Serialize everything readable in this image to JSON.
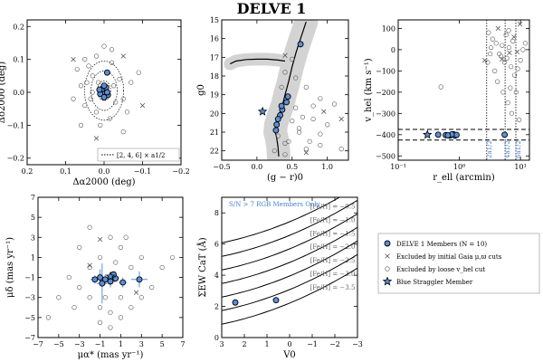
{
  "title": "DELVE 1",
  "chart_data": [
    {
      "id": "spatial",
      "type": "scatter",
      "xlabel": "Δα2000 (deg)",
      "ylabel": "Δδ2000 (deg)",
      "xlim": [
        0.2,
        -0.2
      ],
      "ylim": [
        -0.22,
        0.22
      ],
      "xticks": [
        0.2,
        0.1,
        0.0,
        -0.1,
        -0.2
      ],
      "yticks": [
        -0.2,
        -0.1,
        0.0,
        0.1,
        0.2
      ],
      "xticklabels": [
        "0.2",
        "0.1",
        "0.0",
        "−0.1",
        "−0.2"
      ],
      "yticklabels": [
        "−0.2",
        "−0.1",
        "0.0",
        "0.1",
        "0.2"
      ],
      "legend": "[2, 4, 6] × a1/2",
      "ellipses": [
        {
          "a": 0.017,
          "b": 0.03
        },
        {
          "a": 0.034,
          "b": 0.06
        },
        {
          "a": 0.051,
          "b": 0.09
        }
      ],
      "members": [
        [
          0.0,
          0.0
        ],
        [
          0.005,
          0.01
        ],
        [
          -0.005,
          0.015
        ],
        [
          0.01,
          -0.005
        ],
        [
          -0.01,
          -0.008
        ],
        [
          0.0,
          0.02
        ],
        [
          0.012,
          0.008
        ],
        [
          -0.008,
          0.0
        ],
        [
          0.0,
          -0.015
        ],
        [
          -0.008,
          0.06
        ]
      ],
      "loose": [
        [
          0.03,
          0.05
        ],
        [
          0.04,
          0.08
        ],
        [
          -0.02,
          0.09
        ],
        [
          0.05,
          -0.04
        ],
        [
          -0.05,
          -0.02
        ],
        [
          0.02,
          -0.06
        ],
        [
          0.06,
          0.02
        ],
        [
          -0.04,
          0.04
        ],
        [
          0.07,
          0.07
        ],
        [
          -0.06,
          -0.06
        ],
        [
          0.03,
          0.0
        ],
        [
          -0.03,
          -0.03
        ],
        [
          0.045,
          0.03
        ],
        [
          -0.015,
          -0.08
        ],
        [
          0.02,
          0.11
        ],
        [
          -0.07,
          0.03
        ],
        [
          0.01,
          -0.1
        ],
        [
          -0.02,
          0.13
        ],
        [
          0.08,
          -0.02
        ],
        [
          -0.09,
          0.06
        ],
        [
          0.06,
          -0.1
        ],
        [
          -0.05,
          -0.12
        ],
        [
          0.015,
          0.03
        ],
        [
          -0.025,
          0.02
        ],
        [
          0.035,
          -0.02
        ],
        [
          0.05,
          0.1
        ],
        [
          0.0,
          0.14
        ]
      ],
      "excluded_gaia": [
        [
          -0.1,
          -0.04
        ],
        [
          0.08,
          0.1
        ],
        [
          0.02,
          -0.14
        ],
        [
          -0.05,
          0.11
        ]
      ]
    },
    {
      "id": "cmd",
      "type": "scatter",
      "xlabel": "(g − r)0",
      "ylabel": "g0",
      "xlim": [
        -0.5,
        1.3
      ],
      "ylim": [
        22.5,
        15.0
      ],
      "xticks": [
        -0.5,
        0.0,
        0.5,
        1.0
      ],
      "yticks": [
        15,
        16,
        17,
        18,
        19,
        20,
        21,
        22
      ],
      "xticklabels": [
        "−0.5",
        "0.0",
        "0.5",
        "1.0"
      ],
      "yticklabels": [
        "15",
        "16",
        "17",
        "18",
        "19",
        "20",
        "21",
        "22"
      ],
      "isochrone_rgb": [
        [
          0.31,
          22.3
        ],
        [
          0.3,
          21.8
        ],
        [
          0.28,
          21.3
        ],
        [
          0.26,
          21.0
        ],
        [
          0.27,
          20.6
        ],
        [
          0.31,
          20.1
        ],
        [
          0.36,
          19.6
        ],
        [
          0.4,
          19.0
        ],
        [
          0.45,
          18.3
        ],
        [
          0.5,
          17.5
        ],
        [
          0.56,
          16.7
        ],
        [
          0.62,
          16.0
        ],
        [
          0.7,
          15.1
        ]
      ],
      "isochrone_hb": [
        [
          -0.38,
          17.35
        ],
        [
          -0.3,
          17.2
        ],
        [
          -0.15,
          17.12
        ],
        [
          0.0,
          17.1
        ],
        [
          0.15,
          17.1
        ],
        [
          0.3,
          17.15
        ],
        [
          0.4,
          17.2
        ]
      ],
      "members": [
        [
          0.62,
          16.3
        ],
        [
          0.44,
          19.1
        ],
        [
          0.42,
          19.4
        ],
        [
          0.36,
          19.8
        ],
        [
          0.33,
          20.1
        ],
        [
          0.3,
          20.3
        ],
        [
          0.28,
          20.6
        ],
        [
          0.27,
          20.9
        ],
        [
          0.35,
          19.6
        ]
      ],
      "bss": [
        0.08,
        19.9
      ],
      "loose": [
        [
          0.5,
          17.1
        ],
        [
          0.55,
          18.1
        ],
        [
          0.4,
          17.8
        ],
        [
          0.7,
          18.6
        ],
        [
          0.9,
          19.2
        ],
        [
          0.5,
          20.4
        ],
        [
          0.6,
          21.0
        ],
        [
          0.4,
          21.6
        ],
        [
          0.7,
          21.9
        ],
        [
          0.8,
          20.3
        ],
        [
          1.0,
          20.6
        ],
        [
          0.3,
          21.2
        ],
        [
          0.45,
          21.5
        ],
        [
          0.9,
          21.1
        ],
        [
          1.1,
          19.5
        ],
        [
          0.35,
          18.6
        ],
        [
          0.6,
          20.8
        ],
        [
          0.75,
          21.5
        ],
        [
          0.55,
          19.7
        ],
        [
          1.2,
          21.9
        ],
        [
          0.25,
          22.0
        ],
        [
          0.8,
          19.6
        ],
        [
          0.65,
          20.2
        ],
        [
          0.9,
          21.7
        ],
        [
          0.4,
          22.2
        ]
      ],
      "excluded_gaia": [
        [
          0.4,
          16.9
        ],
        [
          0.95,
          19.9
        ],
        [
          1.2,
          20.3
        ],
        [
          0.7,
          22.1
        ]
      ]
    },
    {
      "id": "velocity",
      "type": "scatter",
      "xlabel": "r_ell (arcmin)",
      "ylabel": "v_hel (km s⁻¹)",
      "xscale": "log",
      "xlim": [
        0.1,
        14
      ],
      "ylim": [
        -520,
        140
      ],
      "yticks": [
        -500,
        -400,
        -300,
        -200,
        -100,
        0,
        100
      ],
      "yticklabels": [
        "−500",
        "−400",
        "−300",
        "−200",
        "−100",
        "0",
        "100"
      ],
      "xticks": [
        0.1,
        1,
        10
      ],
      "xticklabels": [
        "10⁻¹",
        "10⁰",
        "10¹"
      ],
      "vlines": [
        {
          "x": 2.8,
          "label": "2a1/2"
        },
        {
          "x": 5.6,
          "label": "4a1/2"
        },
        {
          "x": 8.4,
          "label": "6a1/2"
        }
      ],
      "hlines": [
        -375,
        -425
      ],
      "members": [
        [
          0.45,
          -400
        ],
        [
          0.6,
          -402
        ],
        [
          0.7,
          -404
        ],
        [
          0.8,
          -398
        ],
        [
          0.85,
          -405
        ],
        [
          0.9,
          -401
        ],
        [
          0.75,
          -399
        ],
        [
          0.65,
          -403
        ],
        [
          5.5,
          -400
        ]
      ],
      "bss": [
        0.3,
        -400
      ],
      "loose": [
        [
          0.5,
          -175
        ],
        [
          3.0,
          80
        ],
        [
          3.5,
          50
        ],
        [
          4.0,
          30
        ],
        [
          4.5,
          -20
        ],
        [
          5.0,
          20
        ],
        [
          5.5,
          -60
        ],
        [
          6.0,
          -40
        ],
        [
          6.5,
          10
        ],
        [
          7.0,
          -80
        ],
        [
          7.5,
          40
        ],
        [
          8.0,
          -120
        ],
        [
          3.2,
          -20
        ],
        [
          3.8,
          -100
        ],
        [
          4.2,
          -150
        ],
        [
          5.2,
          -200
        ],
        [
          6.2,
          -250
        ],
        [
          6.8,
          -180
        ],
        [
          7.2,
          -300
        ],
        [
          9.0,
          -90
        ],
        [
          10.0,
          -50
        ],
        [
          3.3,
          10
        ],
        [
          4.8,
          -30
        ],
        [
          2.9,
          -60
        ],
        [
          11,
          0
        ],
        [
          8.5,
          -200
        ],
        [
          9.5,
          -330
        ],
        [
          12,
          30
        ],
        [
          5.8,
          70
        ],
        [
          6.4,
          90
        ]
      ],
      "excluded_gaia": [
        [
          2.6,
          -50
        ],
        [
          4.3,
          100
        ],
        [
          5.0,
          -45
        ],
        [
          6.6,
          -15
        ],
        [
          7.8,
          60
        ],
        [
          8.8,
          -10
        ],
        [
          9.8,
          120
        ]
      ]
    },
    {
      "id": "proper-motion",
      "type": "scatter",
      "xlabel": "μα* (mas yr⁻¹)",
      "ylabel": "μδ (mas yr⁻¹)",
      "xlim": [
        -7,
        7
      ],
      "ylim": [
        -7,
        7
      ],
      "xticks": [
        -7,
        -5,
        -3,
        -1,
        1,
        3,
        5,
        7
      ],
      "yticks": [
        -7,
        -5,
        -3,
        -1,
        1,
        3,
        5,
        7
      ],
      "xticklabels": [
        "−7",
        "−5",
        "−3",
        "−1",
        "1",
        "3",
        "5",
        "7"
      ],
      "yticklabels": [
        "−7",
        "−5",
        "−3",
        "−1",
        "1",
        "3",
        "5",
        "7"
      ],
      "members": [
        [
          -1.0,
          -1.0
        ],
        [
          -0.5,
          -1.2
        ],
        [
          0.0,
          -1.4
        ],
        [
          0.5,
          -1.1
        ],
        [
          -0.8,
          -1.6
        ],
        [
          1.2,
          -1.5
        ],
        [
          2.8,
          -1.2
        ],
        [
          -1.5,
          -1.2
        ],
        [
          0.3,
          -0.7
        ]
      ],
      "member_errors": [
        [
          -1.0,
          -1.0,
          0.8,
          0.8
        ],
        [
          -0.5,
          -1.2,
          0.5,
          0.5
        ],
        [
          0.0,
          -1.4,
          0.5,
          0.6
        ],
        [
          0.5,
          -1.1,
          0.3,
          0.3
        ],
        [
          -0.8,
          -1.6,
          0.5,
          2.0
        ],
        [
          1.2,
          -1.5,
          0.4,
          0.5
        ],
        [
          2.8,
          -1.2,
          0.8,
          0.8
        ],
        [
          -1.5,
          -1.2,
          0.4,
          0.4
        ]
      ],
      "bss": [
        0.0,
        -0.9
      ],
      "loose": [
        [
          -3,
          2
        ],
        [
          -2,
          4
        ],
        [
          0,
          3
        ],
        [
          1,
          2
        ],
        [
          3,
          1
        ],
        [
          -4,
          -1
        ],
        [
          -5,
          -3
        ],
        [
          -6,
          -5
        ],
        [
          2,
          -4
        ],
        [
          1,
          -5
        ],
        [
          -1,
          -4
        ],
        [
          0,
          -6
        ],
        [
          -2,
          -3
        ],
        [
          4,
          -2
        ],
        [
          5,
          0
        ],
        [
          3,
          -3
        ],
        [
          -3,
          -2
        ],
        [
          -1,
          1
        ],
        [
          0.5,
          0.5
        ],
        [
          2,
          0
        ],
        [
          -0.5,
          -3
        ],
        [
          1,
          -3
        ],
        [
          -2,
          0
        ],
        [
          0,
          -4.5
        ],
        [
          6,
          1
        ],
        [
          -1,
          -5.5
        ],
        [
          1.5,
          3
        ],
        [
          -3.5,
          -4
        ]
      ],
      "excluded_gaia": [
        [
          -2.0,
          0.2
        ],
        [
          2.5,
          -2.5
        ],
        [
          -1.0,
          2.8
        ]
      ]
    },
    {
      "id": "metallicity",
      "type": "scatter",
      "xlabel": "V0",
      "ylabel": "ΣEW CaT (Å)",
      "xlim": [
        3,
        -3
      ],
      "ylim": [
        0,
        9
      ],
      "xticks": [
        3,
        2,
        1,
        0,
        -1,
        -2,
        -3
      ],
      "yticks": [
        0,
        2,
        4,
        6,
        8
      ],
      "xticklabels": [
        "3",
        "2",
        "1",
        "0",
        "−1",
        "−2",
        "−3"
      ],
      "yticklabels": [
        "0",
        "2",
        "4",
        "6",
        "8"
      ],
      "annotation": "S/N > 7 RGB Members Only",
      "feh_lines": [
        {
          "label": "[Fe/H] = −0.5",
          "c": 7.43
        },
        {
          "label": "[Fe/H] = −1.0",
          "c": 6.56
        },
        {
          "label": "[Fe/H] = −1.5",
          "c": 5.69
        },
        {
          "label": "[Fe/H] = −2.0",
          "c": 4.82
        },
        {
          "label": "[Fe/H] = −2.5",
          "c": 3.95
        },
        {
          "label": "[Fe/H] = −3.0",
          "c": 3.08
        },
        {
          "label": "[Fe/H] = −3.5",
          "c": 2.21
        }
      ],
      "members": [
        [
          2.4,
          2.25
        ],
        [
          0.6,
          2.4
        ]
      ]
    },
    {
      "id": "legend",
      "type": "table",
      "entries": [
        {
          "marker": "member",
          "label": "DELVE 1 Members (N = 10)"
        },
        {
          "marker": "x",
          "label": "Excluded by initial Gaia μ,ϖ cuts"
        },
        {
          "marker": "circle",
          "label": "Excluded by loose v_hel cut"
        },
        {
          "marker": "star",
          "label": "Blue Straggler Member"
        }
      ]
    }
  ],
  "colors": {
    "member_fill": "#5b8fd6",
    "member_edge": "#000000",
    "band": "#d3d3d3",
    "annotation": "#4a7fd0"
  }
}
